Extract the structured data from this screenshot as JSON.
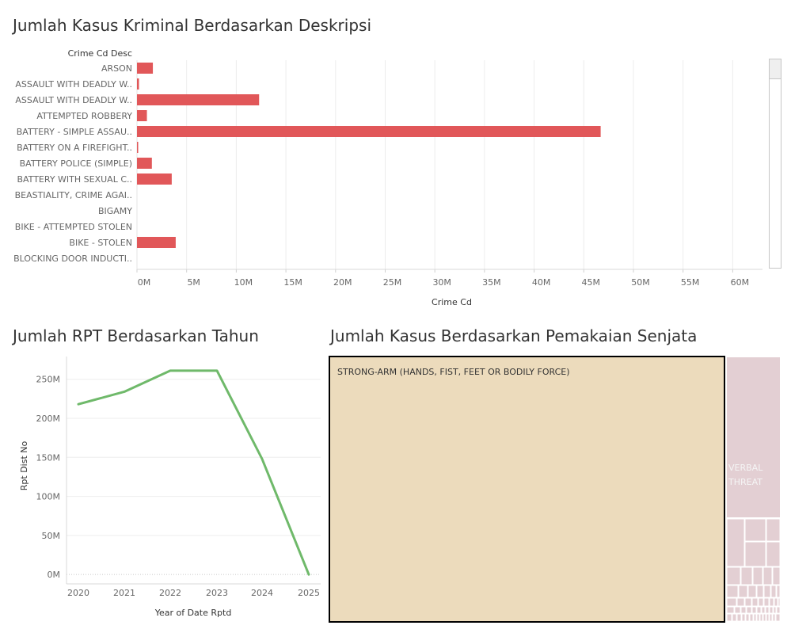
{
  "bar_panel": {
    "title": "Jumlah Kasus Kriminal Berdasarkan Deskripsi"
  },
  "line_panel": {
    "title": "Jumlah RPT Berdasarkan Tahun"
  },
  "treemap_panel": {
    "title": "Jumlah Kasus Berdasarkan Pemakaian Senjata"
  },
  "chart_data": [
    {
      "type": "bar",
      "orientation": "horizontal",
      "title": "Jumlah Kasus Kriminal Berdasarkan Deskripsi",
      "row_header": "Crime Cd Desc",
      "xlabel": "Crime Cd",
      "categories": [
        "ARSON",
        "ASSAULT WITH DEADLY W..",
        "ASSAULT WITH DEADLY W..",
        "ATTEMPTED ROBBERY",
        "BATTERY - SIMPLE ASSAU..",
        "BATTERY ON A FIREFIGHT..",
        "BATTERY POLICE (SIMPLE)",
        "BATTERY WITH SEXUAL C..",
        "BEASTIALITY, CRIME AGAI..",
        "BIGAMY",
        "BIKE - ATTEMPTED STOLEN",
        "BIKE - STOLEN",
        "BLOCKING DOOR INDUCTI.."
      ],
      "values": [
        1.6,
        0.2,
        12.3,
        1.0,
        46.7,
        0.1,
        1.5,
        3.5,
        0,
        0,
        0,
        3.9,
        0
      ],
      "unit_suffix": "M",
      "xlim": [
        0,
        63
      ],
      "xticks": [
        "0M",
        "5M",
        "10M",
        "15M",
        "20M",
        "25M",
        "30M",
        "35M",
        "40M",
        "45M",
        "50M",
        "55M",
        "60M"
      ],
      "xtick_values": [
        0,
        5,
        10,
        15,
        20,
        25,
        30,
        35,
        40,
        45,
        50,
        55,
        60
      ],
      "color": "#e15759",
      "grid": true
    },
    {
      "type": "line",
      "title": "Jumlah RPT Berdasarkan Tahun",
      "xlabel": "Year of Date Rptd",
      "ylabel": "Rpt Dist No",
      "x": [
        "2020",
        "2021",
        "2022",
        "2023",
        "2024",
        "2025"
      ],
      "values": [
        218,
        234,
        261,
        261,
        148,
        0
      ],
      "unit_suffix": "M",
      "ylim": [
        -12,
        272
      ],
      "yticks": [
        "0M",
        "50M",
        "100M",
        "150M",
        "200M",
        "250M"
      ],
      "ytick_values": [
        0,
        50,
        100,
        150,
        200,
        250
      ],
      "color": "#6fb96a",
      "grid": true
    },
    {
      "type": "treemap",
      "title": "Jumlah Kasus Berdasarkan Pemakaian Senjata",
      "items": [
        {
          "label": "STRONG-ARM (HANDS, FIST, FEET OR BODILY FORCE)",
          "color": "#ecdbbc"
        },
        {
          "label": "VERBAL THREAT",
          "color": "#e3cfd3"
        }
      ]
    }
  ]
}
